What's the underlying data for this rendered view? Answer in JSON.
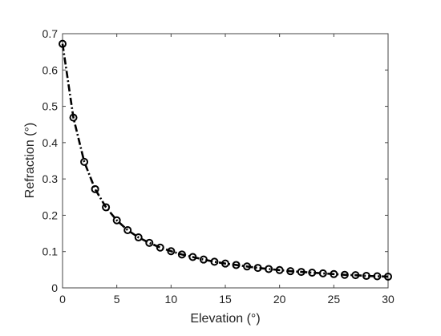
{
  "chart_data": {
    "type": "line",
    "title": "",
    "xlabel": "Elevation (°)",
    "ylabel": "Refraction (°)",
    "xlim": [
      0,
      30
    ],
    "ylim": [
      0,
      0.7
    ],
    "xticks": [
      0,
      5,
      10,
      15,
      20,
      25,
      30
    ],
    "xtick_labels": [
      "0",
      "5",
      "10",
      "15",
      "20",
      "25",
      "30"
    ],
    "yticks": [
      0,
      0.1,
      0.2,
      0.3,
      0.4,
      0.5,
      0.6,
      0.7
    ],
    "ytick_labels": [
      "0",
      "0.1",
      "0.2",
      "0.3",
      "0.4",
      "0.5",
      "0.6",
      "0.7"
    ],
    "grid": false,
    "legend": "none",
    "series": [
      {
        "line_style": "dash-dot",
        "marker": "circle",
        "color": "#000000",
        "x": [
          0,
          1,
          2,
          3,
          4,
          5,
          6,
          7,
          8,
          9,
          10,
          11,
          12,
          13,
          14,
          15,
          16,
          17,
          18,
          19,
          20,
          21,
          22,
          23,
          24,
          25,
          26,
          27,
          28,
          29,
          30
        ],
        "y": [
          0.672,
          0.469,
          0.347,
          0.272,
          0.222,
          0.186,
          0.159,
          0.139,
          0.124,
          0.111,
          0.101,
          0.092,
          0.085,
          0.078,
          0.072,
          0.067,
          0.063,
          0.059,
          0.055,
          0.052,
          0.049,
          0.046,
          0.044,
          0.042,
          0.04,
          0.038,
          0.036,
          0.035,
          0.033,
          0.032,
          0.031
        ]
      }
    ]
  }
}
